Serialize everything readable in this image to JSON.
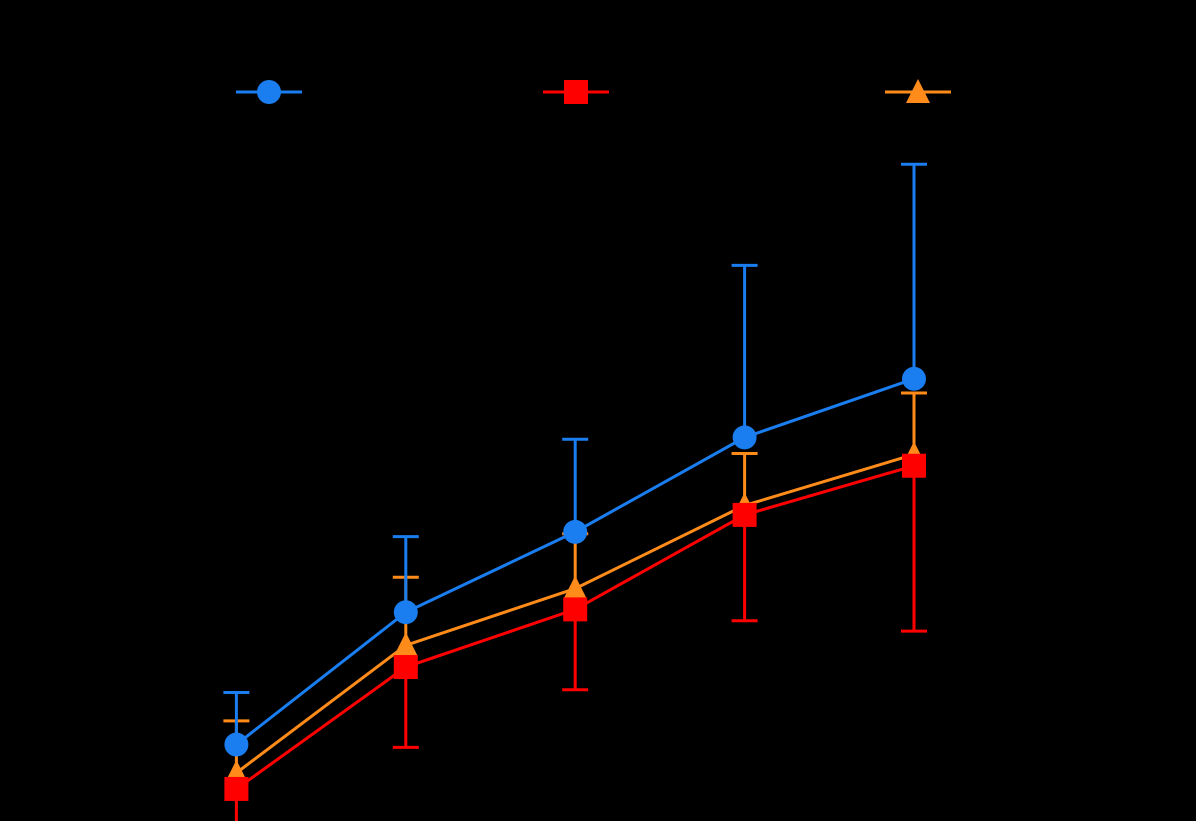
{
  "chart_data": {
    "type": "line",
    "title": "",
    "xlabel": "",
    "ylabel": "",
    "x": [
      1,
      2,
      3,
      4,
      5
    ],
    "xlim": [
      0,
      5.5
    ],
    "ylim": [
      0,
      10
    ],
    "grid": false,
    "legend_placement": "top",
    "series": [
      {
        "name": "",
        "color": "#1a7ef0",
        "marker": "circle",
        "values": [
          3.55,
          4.95,
          5.8,
          6.8,
          7.42
        ],
        "err_low": [
          0.0,
          0.0,
          0.0,
          0.0,
          0.0
        ],
        "err_high": [
          0.55,
          0.8,
          0.98,
          1.82,
          2.27
        ]
      },
      {
        "name": "",
        "color": "#ff0000",
        "marker": "square",
        "values": [
          3.08,
          4.37,
          4.98,
          5.98,
          6.5
        ],
        "err_low": [
          0.42,
          0.85,
          0.85,
          1.12,
          1.75
        ],
        "err_high": [
          0.0,
          0.0,
          0.0,
          0.0,
          0.0
        ]
      },
      {
        "name": "",
        "color": "#ff8c1a",
        "marker": "triangle",
        "values": [
          3.25,
          4.6,
          5.2,
          6.08,
          6.62
        ],
        "err_low": [
          0.0,
          0.0,
          0.0,
          0.0,
          0.0
        ],
        "err_high": [
          0.55,
          0.72,
          0.58,
          0.55,
          0.65
        ]
      }
    ]
  }
}
